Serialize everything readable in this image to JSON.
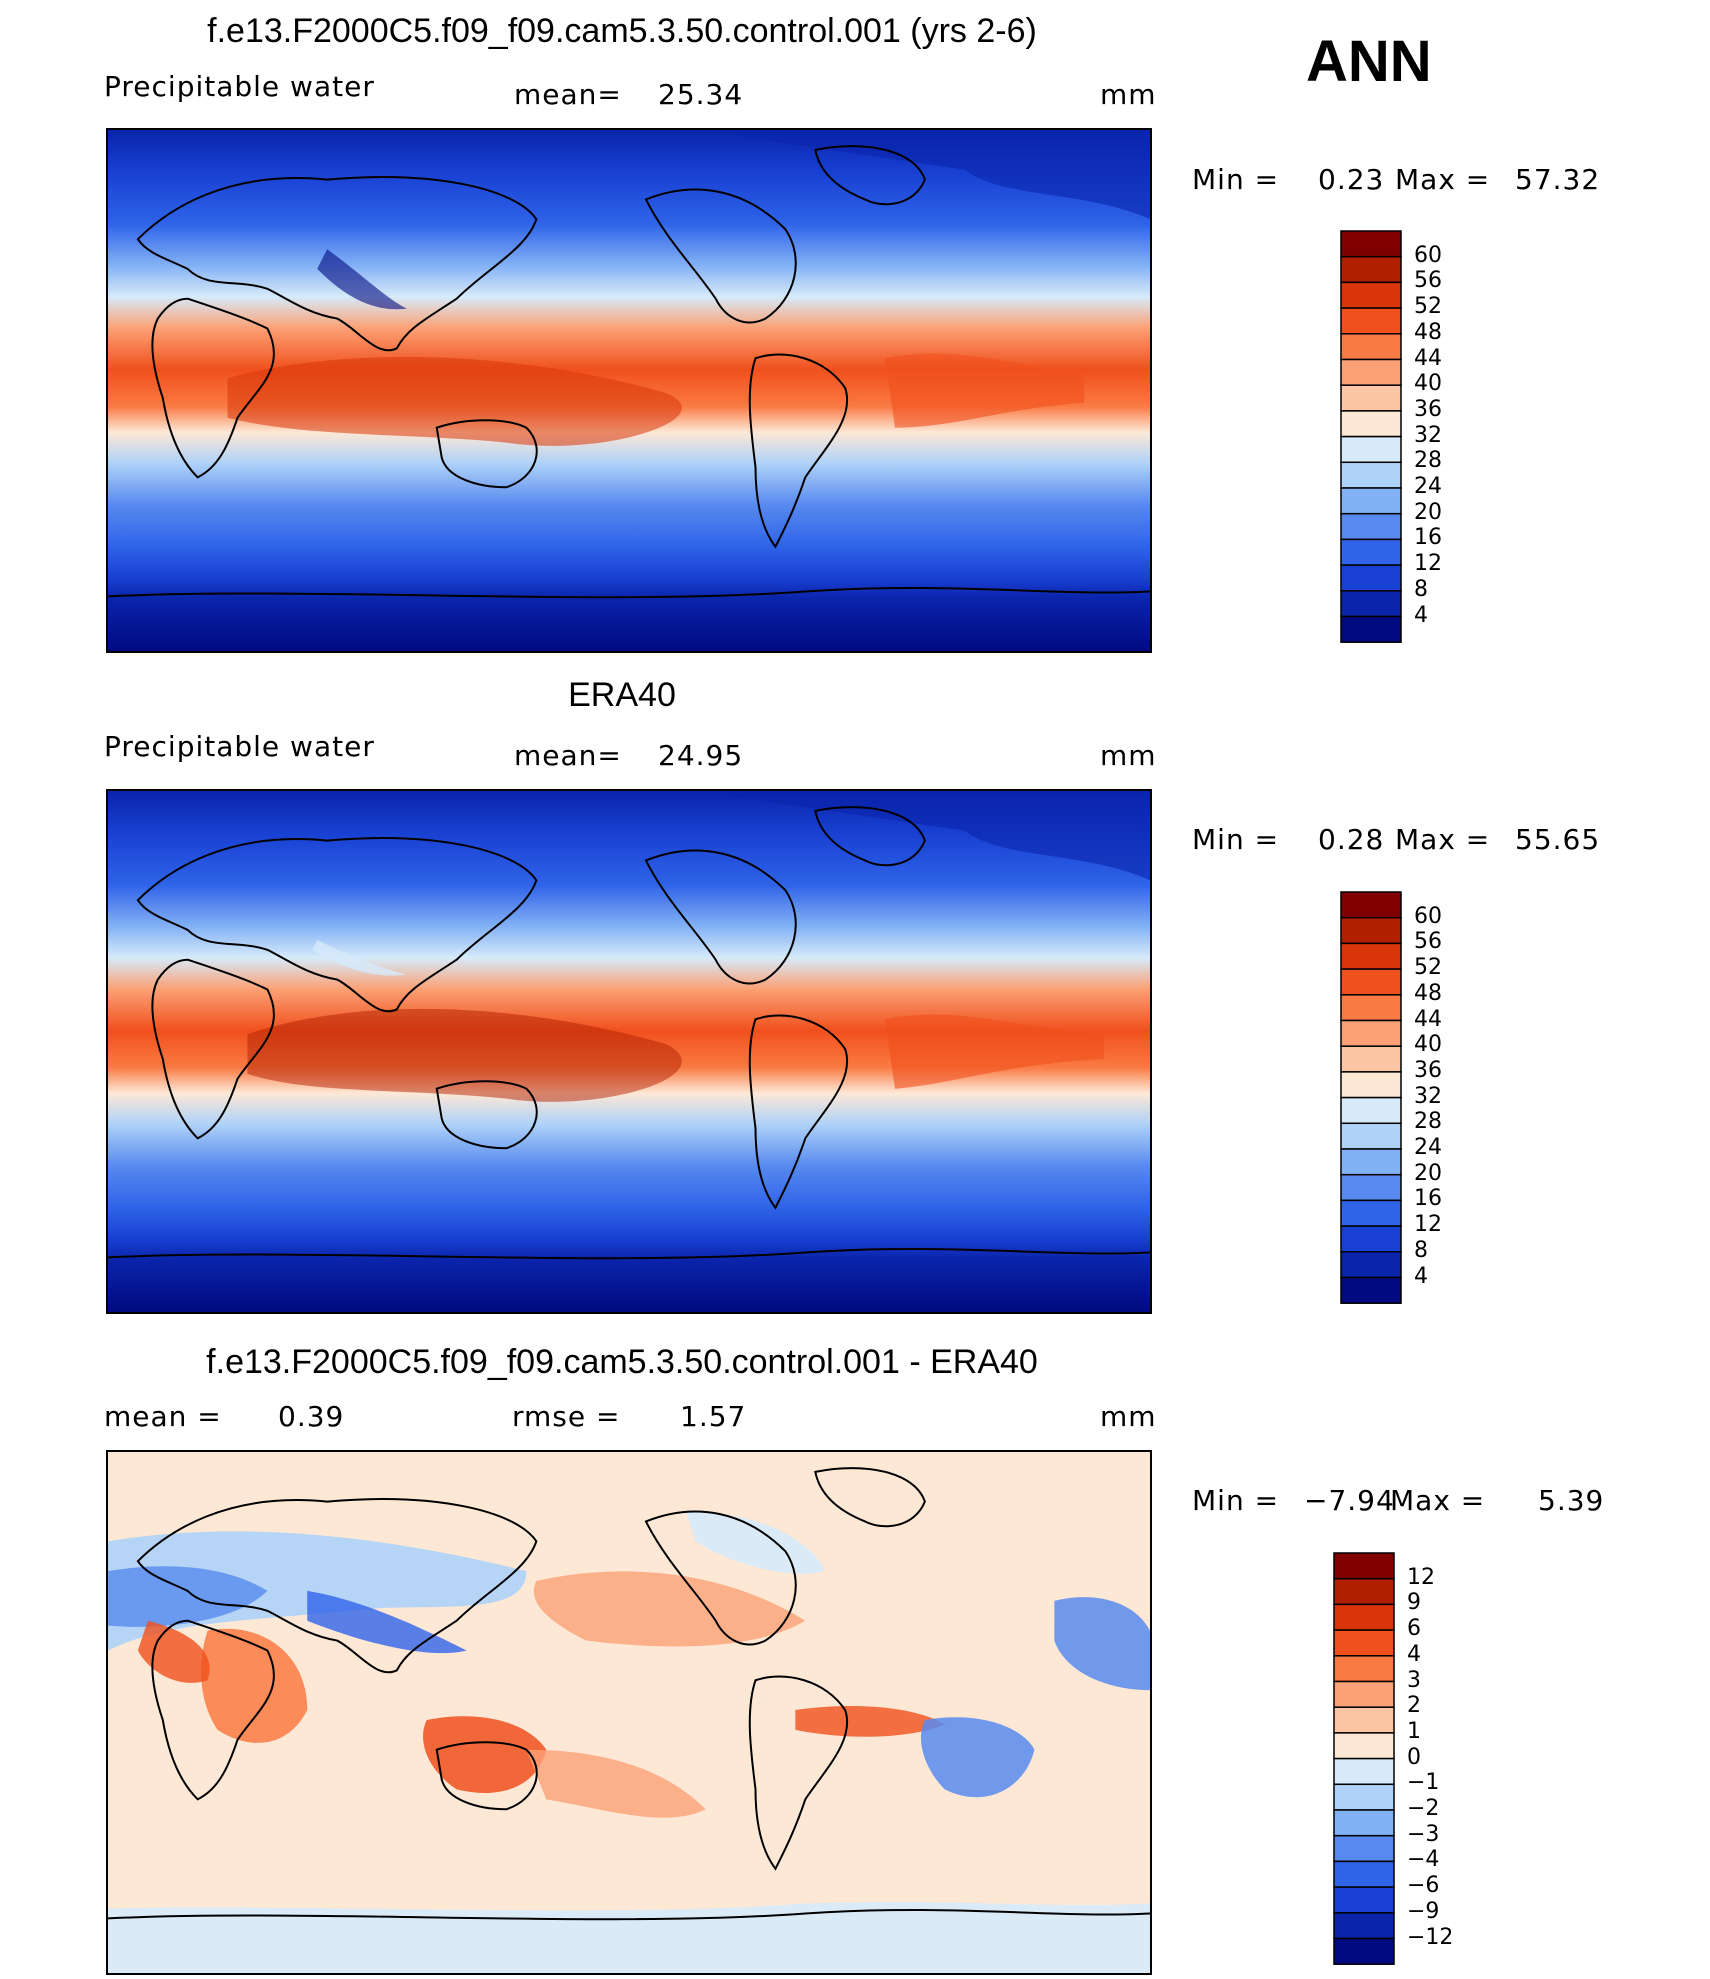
{
  "season": "ANN",
  "panels": [
    {
      "title": "f.e13.F2000C5.f09_f09.cam5.3.50.control.001 (yrs 2-6)",
      "left_label": "Precipitable  water",
      "mid_label": "mean=",
      "mid_value": "25.34",
      "units": "mm",
      "min_label": "Min  =",
      "min_value": "0.23",
      "max_label": "Max  =",
      "max_value": "57.32",
      "levels": [
        "60",
        "56",
        "52",
        "48",
        "44",
        "40",
        "36",
        "32",
        "28",
        "24",
        "20",
        "16",
        "12",
        "8",
        "4"
      ],
      "colors": [
        "#800000",
        "#b21f00",
        "#d8360a",
        "#f0501d",
        "#fa7a43",
        "#fba175",
        "#fcc5a4",
        "#fde8d6",
        "#d6eafa",
        "#aed2f8",
        "#83b1f5",
        "#5789ef",
        "#2f63e8",
        "#1840d2",
        "#0a24ab",
        "#010a80"
      ]
    },
    {
      "title": "ERA40",
      "left_label": "Precipitable  water",
      "mid_label": "mean=",
      "mid_value": "24.95",
      "units": "mm",
      "min_label": "Min  =",
      "min_value": "0.28",
      "max_label": "Max  =",
      "max_value": "55.65",
      "levels": [
        "60",
        "56",
        "52",
        "48",
        "44",
        "40",
        "36",
        "32",
        "28",
        "24",
        "20",
        "16",
        "12",
        "8",
        "4"
      ],
      "colors": [
        "#800000",
        "#b21f00",
        "#d8360a",
        "#f0501d",
        "#fa7a43",
        "#fba175",
        "#fcc5a4",
        "#fde8d6",
        "#d6eafa",
        "#aed2f8",
        "#83b1f5",
        "#5789ef",
        "#2f63e8",
        "#1840d2",
        "#0a24ab",
        "#010a80"
      ]
    },
    {
      "title": "f.e13.F2000C5.f09_f09.cam5.3.50.control.001 - ERA40",
      "left_label": "mean  =",
      "left_value": "0.39",
      "mid_label": "rmse  =",
      "mid_value": "1.57",
      "units": "mm",
      "min_label": "Min  =",
      "min_value": "−7.94",
      "max_label": "Max  =",
      "max_value": "5.39",
      "levels": [
        "12",
        "9",
        "6",
        "4",
        "3",
        "2",
        "1",
        "0",
        "−1",
        "−2",
        "−3",
        "−4",
        "−6",
        "−9",
        "−12"
      ],
      "colors": [
        "#800000",
        "#b21f00",
        "#d8360a",
        "#f0501d",
        "#fa7a43",
        "#fba175",
        "#fcc5a4",
        "#fde8d6",
        "#d6eafa",
        "#aed2f8",
        "#83b1f5",
        "#5789ef",
        "#2f63e8",
        "#1840d2",
        "#0a24ab",
        "#010a80"
      ]
    }
  ],
  "chart_data": [
    {
      "type": "heatmap",
      "title": "f.e13.F2000C5.f09_f09.cam5.3.50.control.001 (yrs 2-6)",
      "variable": "Precipitable  water",
      "units": "mm",
      "mean": 25.34,
      "min": 0.23,
      "max": 57.32,
      "contour_levels": [
        4,
        8,
        12,
        16,
        20,
        24,
        28,
        32,
        36,
        40,
        44,
        48,
        52,
        56,
        60
      ]
    },
    {
      "type": "heatmap",
      "title": "ERA40",
      "variable": "Precipitable  water",
      "units": "mm",
      "mean": 24.95,
      "min": 0.28,
      "max": 55.65,
      "contour_levels": [
        4,
        8,
        12,
        16,
        20,
        24,
        28,
        32,
        36,
        40,
        44,
        48,
        52,
        56,
        60
      ]
    },
    {
      "type": "heatmap",
      "title": "f.e13.F2000C5.f09_f09.cam5.3.50.control.001 - ERA40",
      "units": "mm",
      "mean": 0.39,
      "rmse": 1.57,
      "min": -7.94,
      "max": 5.39,
      "contour_levels": [
        -12,
        -9,
        -6,
        -4,
        -3,
        -2,
        -1,
        0,
        1,
        2,
        3,
        4,
        6,
        9,
        12
      ]
    }
  ]
}
